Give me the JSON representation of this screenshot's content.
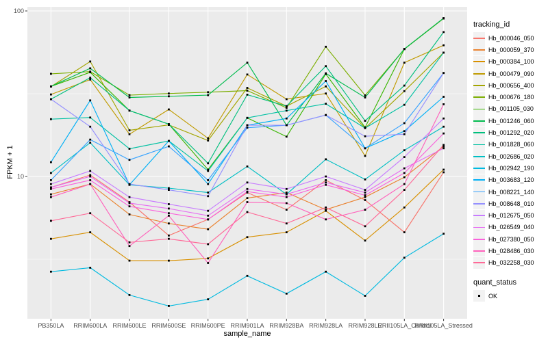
{
  "chart_data": {
    "type": "line",
    "title": "",
    "xlabel": "sample_name",
    "ylabel": "FPKM + 1",
    "y_scale": "log10",
    "ylim": [
      1.38,
      106
    ],
    "grid": "on",
    "panel_bg": "#EBEBEB",
    "grid_color": "#FFFFFF",
    "marker": "black-square",
    "y_ticks": [
      {
        "label": "100",
        "value": 100
      },
      {
        "label": "10",
        "value": 10
      }
    ],
    "y_minor": [
      31.62,
      3.162
    ],
    "categories": [
      "PB350LA",
      "RRIM600LA",
      "RRIM600LE",
      "RRIM600SE",
      "RRIM600PE",
      "RRIM901LA",
      "RRIM928BA",
      "RRIM928LA",
      "RRIM928LE",
      "RRII105LA_Control",
      "RRII105LA_Stressed"
    ],
    "legend": {
      "title": "tracking_id",
      "position": "right"
    },
    "quant_status": {
      "title": "quant_status",
      "items": [
        "OK"
      ]
    },
    "series": [
      {
        "name": "Hb_000046_050",
        "color": "#F8766D",
        "values": [
          8.6,
          10.2,
          7.0,
          4.4,
          5.5,
          8.0,
          6.3,
          9.5,
          7.2,
          4.6,
          10.6
        ]
      },
      {
        "name": "Hb_000059_370",
        "color": "#EA8331",
        "values": [
          7.8,
          9.0,
          5.9,
          5.2,
          4.8,
          7.4,
          8.0,
          6.3,
          7.5,
          9.9,
          15.2
        ]
      },
      {
        "name": "Hb_000384_100",
        "color": "#D89000",
        "values": [
          4.2,
          4.6,
          3.1,
          3.1,
          3.2,
          4.3,
          4.6,
          6.2,
          4.1,
          6.5,
          11.0
        ]
      },
      {
        "name": "Hb_000479_090",
        "color": "#C09B00",
        "values": [
          31.3,
          38.5,
          18.0,
          25.4,
          17.0,
          41.3,
          29.3,
          31.7,
          13.3,
          48.7,
          62.0
        ]
      },
      {
        "name": "Hb_000656_400",
        "color": "#A3A500",
        "values": [
          34.9,
          49.5,
          19.0,
          20.5,
          16.5,
          34.3,
          26.6,
          35.0,
          19.6,
          32.8,
          56.0
        ]
      },
      {
        "name": "Hb_000676_180",
        "color": "#7CAE00",
        "values": [
          41.7,
          43.0,
          31.0,
          31.7,
          32.3,
          33.0,
          26.0,
          60.8,
          30.9,
          58.8,
          90.0
        ]
      },
      {
        "name": "Hb_001105_030",
        "color": "#39B600",
        "values": [
          35.0,
          42.6,
          25.0,
          20.7,
          11.0,
          22.6,
          17.4,
          41.6,
          19.8,
          58.8,
          90.4
        ]
      },
      {
        "name": "Hb_001246_060",
        "color": "#00BB4E",
        "values": [
          35.0,
          45.0,
          30.0,
          30.5,
          31.0,
          48.7,
          20.4,
          42.0,
          30.0,
          59.0,
          90.4
        ]
      },
      {
        "name": "Hb_001292_020",
        "color": "#00BF7D",
        "values": [
          29.3,
          39.5,
          25.0,
          20.7,
          12.0,
          31.2,
          26.6,
          46.4,
          21.7,
          35.4,
          74.5
        ]
      },
      {
        "name": "Hb_001828_060",
        "color": "#00C1A3",
        "values": [
          22.2,
          22.7,
          14.7,
          16.4,
          10.8,
          22.6,
          25.0,
          27.5,
          19.6,
          27.1,
          56.0
        ]
      },
      {
        "name": "Hb_002686_020",
        "color": "#00BFC4",
        "values": [
          10.5,
          16.0,
          8.9,
          8.5,
          8.0,
          11.5,
          7.8,
          12.7,
          9.6,
          14.4,
          20.0
        ]
      },
      {
        "name": "Hb_002942_190",
        "color": "#00BAE0",
        "values": [
          2.66,
          2.81,
          1.92,
          1.65,
          1.81,
          2.51,
          1.96,
          2.66,
          1.9,
          3.23,
          4.51
        ]
      },
      {
        "name": "Hb_003683_120",
        "color": "#00B0F6",
        "values": [
          12.2,
          28.8,
          8.9,
          16.4,
          9.0,
          20.4,
          22.4,
          37.7,
          14.8,
          18.8,
          30.3
        ]
      },
      {
        "name": "Hb_008221_140",
        "color": "#35A2FF",
        "values": [
          9.5,
          16.7,
          12.6,
          15.2,
          9.5,
          19.7,
          20.4,
          23.5,
          14.8,
          21.0,
          42.2
        ]
      },
      {
        "name": "Hb_008648_010",
        "color": "#9590FF",
        "values": [
          29.3,
          20.0,
          9.0,
          8.3,
          7.6,
          20.4,
          20.4,
          23.5,
          17.5,
          18.0,
          42.2
        ]
      },
      {
        "name": "Hb_012675_050",
        "color": "#C77CFF",
        "values": [
          9.0,
          10.8,
          7.5,
          6.8,
          6.2,
          9.2,
          8.4,
          10.0,
          8.3,
          13.1,
          22.4
        ]
      },
      {
        "name": "Hb_026549_040",
        "color": "#E76BF3",
        "values": [
          8.6,
          10.0,
          6.9,
          6.4,
          5.8,
          8.4,
          7.8,
          9.2,
          8.0,
          11.2,
          14.8
        ]
      },
      {
        "name": "Hb_027380_050",
        "color": "#FA62DB",
        "values": [
          8.4,
          9.5,
          6.6,
          6.0,
          5.5,
          8.1,
          7.5,
          8.9,
          7.7,
          10.5,
          18.2
        ]
      },
      {
        "name": "Hb_028486_030",
        "color": "#FF62BC",
        "values": [
          7.5,
          9.0,
          3.8,
          5.8,
          3.0,
          7.0,
          6.9,
          5.5,
          6.3,
          9.0,
          27.3
        ]
      },
      {
        "name": "Hb_032258_030",
        "color": "#FF6A98",
        "values": [
          5.4,
          6.0,
          4.0,
          4.2,
          3.9,
          6.1,
          5.2,
          6.5,
          5.0,
          8.3,
          15.5
        ]
      }
    ]
  }
}
